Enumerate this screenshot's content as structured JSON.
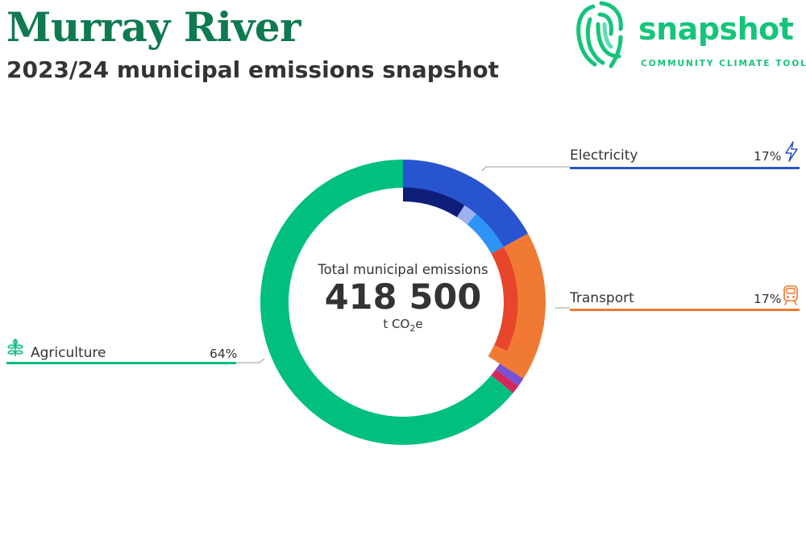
{
  "header": {
    "title": "Murray River",
    "subtitle": "2023/24 municipal emissions snapshot"
  },
  "logo": {
    "wordmark": "snapshot",
    "tagline": "COMMUNITY CLIMATE TOOL",
    "color": "#14c47a"
  },
  "center": {
    "label": "Total municipal emissions",
    "value": "418 500",
    "unit_prefix": "t CO",
    "unit_sub": "2",
    "unit_suffix": "e"
  },
  "sectors": {
    "electricity": {
      "label": "Electricity",
      "percent": "17%",
      "color": "#2c55c8",
      "icon": "lightning-icon"
    },
    "transport": {
      "label": "Transport",
      "percent": "17%",
      "color": "#f0782f",
      "icon": "train-icon"
    },
    "agriculture": {
      "label": "Agriculture",
      "percent": "64%",
      "color": "#00bf7f",
      "icon": "plant-icon"
    }
  },
  "chart_data": {
    "type": "pie",
    "total": 418500,
    "categories": [
      "Electricity",
      "Transport",
      "Other",
      "Other",
      "Agriculture"
    ],
    "values": [
      17,
      17,
      1,
      1,
      64
    ],
    "colors": [
      "#2855cf",
      "#f07a33",
      "#7a52d1",
      "#d4275a",
      "#00bf7f"
    ],
    "sub_values": [
      {
        "parent": "Electricity",
        "values": [
          9,
          2,
          6
        ],
        "colors": [
          "#0e1d77",
          "#9db1f0",
          "#2d93f4"
        ]
      },
      {
        "parent": "Transport",
        "values": [
          15,
          2
        ],
        "colors": [
          "#e8452d",
          "#f07a33"
        ]
      }
    ]
  }
}
